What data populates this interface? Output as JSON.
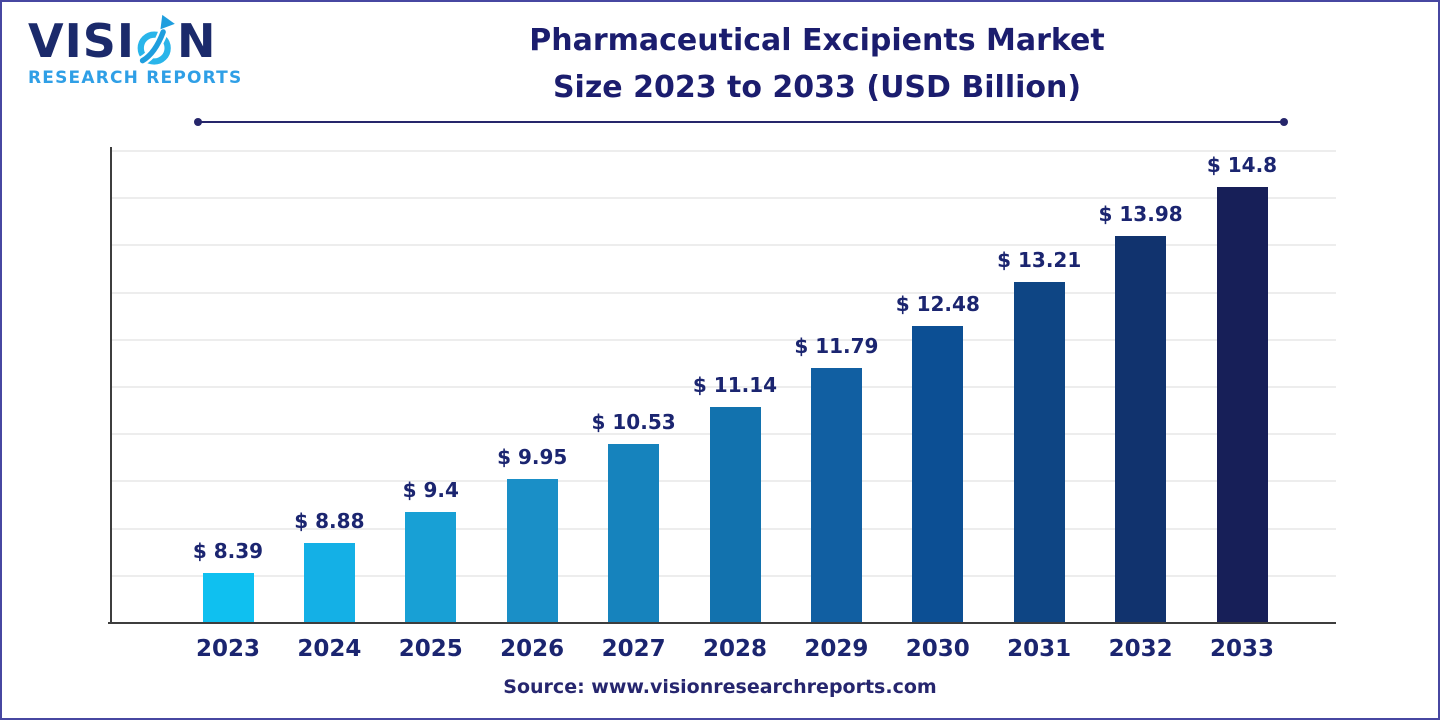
{
  "logo": {
    "brand": "VISION",
    "brand_left": "VISI",
    "brand_right": "N",
    "subtitle": "RESEARCH REPORTS"
  },
  "title": {
    "line1": "Pharmaceutical Excipients Market",
    "line2": "Size 2023 to 2033 (USD Billion)"
  },
  "source": "Source: www.visionresearchreports.com",
  "colors": {
    "page_border": "#4747a1",
    "title_text": "#1b1d6e",
    "label_text": "#1b2570",
    "source_text": "#26266e",
    "brand_navy": "#1b2a6b",
    "brand_cyan": "#2f9fe6",
    "axis": "#3d3d3d",
    "gridline": "#ededed",
    "title_rule": "#26266b"
  },
  "chart_data": {
    "type": "bar",
    "title": "Pharmaceutical Excipients Market Size 2023 to 2033 (USD Billion)",
    "unit": "USD Billion",
    "xlabel": "",
    "ylabel": "",
    "legend": "none",
    "grid": true,
    "gridline_count": 10,
    "axis_baseline_value": 7.57,
    "axis_top_value": 15.5,
    "categories": [
      "2023",
      "2024",
      "2025",
      "2026",
      "2027",
      "2028",
      "2029",
      "2030",
      "2031",
      "2032",
      "2033"
    ],
    "values": [
      8.39,
      8.88,
      9.4,
      9.95,
      10.53,
      11.14,
      11.79,
      12.48,
      13.21,
      13.98,
      14.8
    ],
    "value_labels": [
      "$ 8.39",
      "$ 8.88",
      "$ 9.4",
      "$ 9.95",
      "$ 10.53",
      "$ 11.14",
      "$ 11.79",
      "$ 12.48",
      "$ 13.21",
      "$ 13.98",
      "$ 14.8"
    ],
    "bar_colors": [
      "#0fc0f0",
      "#14b0e6",
      "#18a0d5",
      "#1a8fc7",
      "#1683bd",
      "#1272ae",
      "#115fa2",
      "#0c4f94",
      "#0e4584",
      "#11336e",
      "#171f58"
    ]
  }
}
